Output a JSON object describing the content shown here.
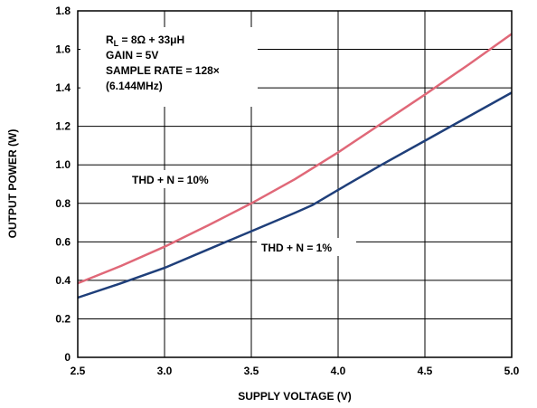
{
  "chart_data": {
    "type": "line",
    "xlabel": "SUPPLY VOLTAGE (V)",
    "ylabel": "OUTPUT POWER (W)",
    "xlim": [
      2.5,
      5.0
    ],
    "ylim": [
      0,
      1.8
    ],
    "xticks": [
      "2.5",
      "3.0",
      "3.5",
      "4.0",
      "4.5",
      "5.0"
    ],
    "yticks": [
      "0",
      "0.2",
      "0.4",
      "0.6",
      "0.8",
      "1.0",
      "1.2",
      "1.4",
      "1.6",
      "1.8"
    ],
    "grid": true,
    "conditions": {
      "line1_pre": "R",
      "line1_sub": "L",
      "line1_post": " = 8Ω + 33μH",
      "line2": "GAIN = 5V",
      "line3": "SAMPLE RATE = 128×",
      "line4": "(6.144MHz)"
    },
    "series": [
      {
        "name": "THD + N = 10%",
        "color": "#e06878",
        "x": [
          2.5,
          2.75,
          3.0,
          3.25,
          3.5,
          3.75,
          4.0,
          4.25,
          4.5,
          4.75,
          5.0
        ],
        "y": [
          0.385,
          0.475,
          0.575,
          0.685,
          0.8,
          0.925,
          1.065,
          1.215,
          1.365,
          1.52,
          1.68
        ]
      },
      {
        "name": "THD + N = 1%",
        "color": "#1f3f7a",
        "x": [
          2.5,
          2.75,
          3.0,
          3.25,
          3.5,
          3.75,
          3.85,
          4.0,
          4.25,
          4.5,
          4.75,
          5.0
        ],
        "y": [
          0.31,
          0.385,
          0.465,
          0.56,
          0.655,
          0.75,
          0.79,
          0.87,
          1.0,
          1.125,
          1.25,
          1.375
        ]
      }
    ]
  }
}
